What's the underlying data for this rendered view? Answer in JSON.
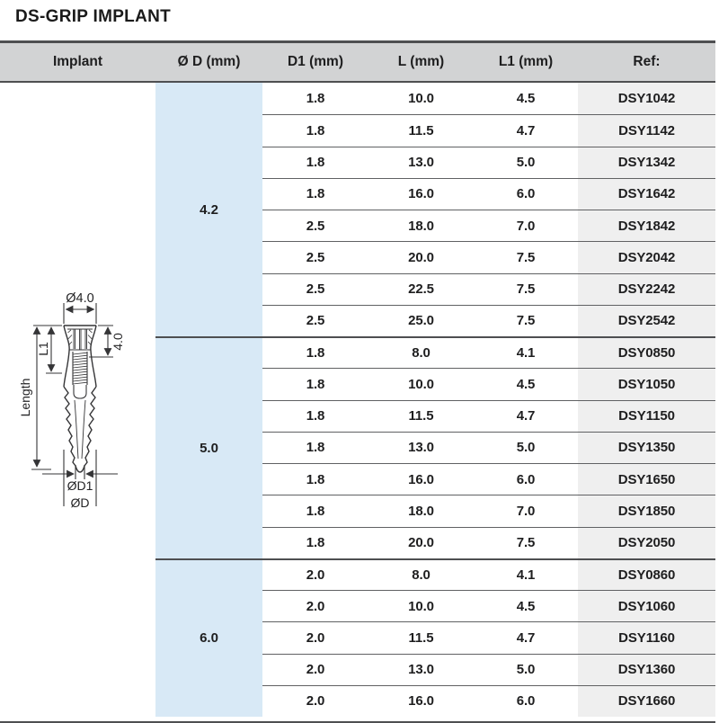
{
  "page_title": "DS-GRIP IMPLANT",
  "colors": {
    "header_bg": "#d2d3d4",
    "diameter_column_bg": "#d8e9f6",
    "ref_column_bg": "#efefef",
    "row_line": "#606163",
    "border_dark": "#4e4f51",
    "text": "#1e1e1f"
  },
  "table": {
    "headers": [
      "Implant",
      "Ø D (mm)",
      "D1 (mm)",
      "L (mm)",
      "L1 (mm)",
      "Ref:"
    ],
    "groups": [
      {
        "d": "4.2",
        "rows": [
          {
            "d1": "1.8",
            "l": "10.0",
            "l1": "4.5",
            "ref": "DSY1042"
          },
          {
            "d1": "1.8",
            "l": "11.5",
            "l1": "4.7",
            "ref": "DSY1142"
          },
          {
            "d1": "1.8",
            "l": "13.0",
            "l1": "5.0",
            "ref": "DSY1342"
          },
          {
            "d1": "1.8",
            "l": "16.0",
            "l1": "6.0",
            "ref": "DSY1642"
          },
          {
            "d1": "2.5",
            "l": "18.0",
            "l1": "7.0",
            "ref": "DSY1842"
          },
          {
            "d1": "2.5",
            "l": "20.0",
            "l1": "7.5",
            "ref": "DSY2042"
          },
          {
            "d1": "2.5",
            "l": "22.5",
            "l1": "7.5",
            "ref": "DSY2242"
          },
          {
            "d1": "2.5",
            "l": "25.0",
            "l1": "7.5",
            "ref": "DSY2542"
          }
        ]
      },
      {
        "d": "5.0",
        "rows": [
          {
            "d1": "1.8",
            "l": "8.0",
            "l1": "4.1",
            "ref": "DSY0850"
          },
          {
            "d1": "1.8",
            "l": "10.0",
            "l1": "4.5",
            "ref": "DSY1050"
          },
          {
            "d1": "1.8",
            "l": "11.5",
            "l1": "4.7",
            "ref": "DSY1150"
          },
          {
            "d1": "1.8",
            "l": "13.0",
            "l1": "5.0",
            "ref": "DSY1350"
          },
          {
            "d1": "1.8",
            "l": "16.0",
            "l1": "6.0",
            "ref": "DSY1650"
          },
          {
            "d1": "1.8",
            "l": "18.0",
            "l1": "7.0",
            "ref": "DSY1850"
          },
          {
            "d1": "1.8",
            "l": "20.0",
            "l1": "7.5",
            "ref": "DSY2050"
          }
        ]
      },
      {
        "d": "6.0",
        "rows": [
          {
            "d1": "2.0",
            "l": "8.0",
            "l1": "4.1",
            "ref": "DSY0860"
          },
          {
            "d1": "2.0",
            "l": "10.0",
            "l1": "4.5",
            "ref": "DSY1060"
          },
          {
            "d1": "2.0",
            "l": "11.5",
            "l1": "4.7",
            "ref": "DSY1160"
          },
          {
            "d1": "2.0",
            "l": "13.0",
            "l1": "5.0",
            "ref": "DSY1360"
          },
          {
            "d1": "2.0",
            "l": "16.0",
            "l1": "6.0",
            "ref": "DSY1660"
          }
        ]
      }
    ]
  },
  "diagram": {
    "labels": {
      "top_diameter": "Ø4.0",
      "collar_height": "4.0",
      "l1": "L1",
      "length": "Length",
      "apex_diameter": "ØD1",
      "body_diameter": "ØD"
    }
  }
}
